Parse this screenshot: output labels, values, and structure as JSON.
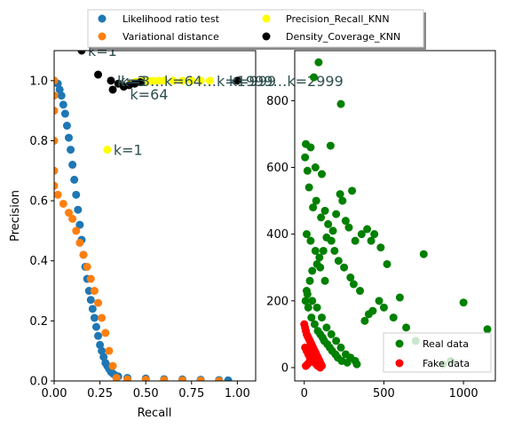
{
  "chart_data": [
    {
      "type": "scatter",
      "xlabel": "Recall",
      "ylabel": "Precision",
      "xlim": [
        0.0,
        1.1
      ],
      "ylim": [
        0.0,
        1.1
      ],
      "xticks": [
        "0.00",
        "0.25",
        "0.50",
        "0.75",
        "1.00"
      ],
      "yticks": [
        "0.0",
        "0.2",
        "0.4",
        "0.6",
        "0.8",
        "1.0"
      ],
      "grid": false,
      "legend_position": "top-center outside",
      "series": [
        {
          "name": "Likelihood ratio test",
          "color": "#1f77b4",
          "x": [
            0.0,
            0.02,
            0.03,
            0.04,
            0.05,
            0.06,
            0.07,
            0.08,
            0.09,
            0.1,
            0.11,
            0.12,
            0.13,
            0.14,
            0.15,
            0.16,
            0.17,
            0.18,
            0.19,
            0.2,
            0.21,
            0.22,
            0.23,
            0.24,
            0.25,
            0.26,
            0.27,
            0.28,
            0.29,
            0.3,
            0.31,
            0.32,
            0.33,
            0.35,
            0.4,
            0.5,
            0.6,
            0.7,
            0.8,
            0.9,
            0.95
          ],
          "y": [
            1.0,
            0.99,
            0.97,
            0.95,
            0.92,
            0.89,
            0.85,
            0.81,
            0.77,
            0.72,
            0.67,
            0.62,
            0.57,
            0.52,
            0.47,
            0.42,
            0.38,
            0.34,
            0.3,
            0.27,
            0.24,
            0.21,
            0.18,
            0.15,
            0.12,
            0.1,
            0.08,
            0.06,
            0.05,
            0.04,
            0.03,
            0.025,
            0.02,
            0.015,
            0.01,
            0.008,
            0.006,
            0.005,
            0.004,
            0.003,
            0.002
          ]
        },
        {
          "name": "Variational distance",
          "color": "#ff7f0e",
          "x": [
            0.0,
            0.0,
            0.0,
            0.0,
            0.0,
            0.0,
            0.02,
            0.05,
            0.08,
            0.1,
            0.12,
            0.14,
            0.16,
            0.18,
            0.2,
            0.22,
            0.24,
            0.26,
            0.28,
            0.3,
            0.32,
            0.34,
            0.4,
            0.5,
            0.6,
            0.7,
            0.8,
            0.9
          ],
          "y": [
            1.0,
            0.95,
            0.9,
            0.8,
            0.7,
            0.65,
            0.62,
            0.59,
            0.56,
            0.54,
            0.5,
            0.46,
            0.42,
            0.38,
            0.34,
            0.3,
            0.26,
            0.21,
            0.16,
            0.1,
            0.05,
            0.01,
            0.005,
            0.004,
            0.003,
            0.002,
            0.001,
            0.0
          ]
        },
        {
          "name": "Precision_Recall_KNN",
          "color": "#ffff00",
          "x": [
            0.29,
            0.42,
            0.44,
            0.46,
            0.48,
            0.5,
            0.52,
            0.54,
            0.57,
            0.6,
            0.65,
            0.7,
            0.75,
            0.8,
            0.85
          ],
          "y": [
            0.77,
            0.99,
            0.995,
            0.997,
            0.998,
            0.998,
            0.999,
            0.999,
            1.0,
            1.0,
            1.0,
            1.0,
            1.0,
            1.0,
            1.0
          ],
          "labels": [
            "k=1"
          ]
        },
        {
          "name": "Density_Coverage_KNN",
          "color": "#000000",
          "x": [
            0.15,
            0.24,
            0.31,
            0.32,
            0.35,
            0.38,
            0.41,
            0.44,
            0.47,
            1.0
          ],
          "y": [
            1.1,
            1.02,
            1.0,
            0.97,
            0.99,
            0.98,
            0.985,
            0.99,
            0.995,
            1.0
          ],
          "labels": [
            "k=1"
          ]
        }
      ],
      "annotations": [
        {
          "text": "k=1",
          "x": 0.29,
          "y": 0.77
        },
        {
          "text": "k=1",
          "x": 0.15,
          "y": 1.1
        },
        {
          "text": "k=3",
          "x": 0.31,
          "y": 1.0
        },
        {
          "text": "k=64",
          "x": 0.38,
          "y": 0.955
        },
        {
          "text": "k=999",
          "x": 0.92,
          "y": 1.0
        }
      ],
      "overlap_text": "k=3…k=64…k=1999…k=2999"
    },
    {
      "type": "scatter",
      "xlim": [
        -60,
        1200
      ],
      "ylim": [
        -40,
        950
      ],
      "xticks": [
        "0",
        "500",
        "1000"
      ],
      "yticks": [
        "0",
        "200",
        "400",
        "600",
        "800"
      ],
      "grid": false,
      "legend_position": "lower-right",
      "series": [
        {
          "name": "Real data",
          "color": "#008000",
          "x": [
            90,
            60,
            230,
            40,
            5,
            10,
            165,
            70,
            110,
            225,
            300,
            20,
            30,
            55,
            75,
            105,
            130,
            150,
            180,
            200,
            240,
            260,
            280,
            320,
            360,
            395,
            420,
            440,
            480,
            520,
            600,
            750,
            1000,
            1150,
            920,
            870,
            700,
            640,
            560,
            500,
            470,
            430,
            405,
            380,
            350,
            310,
            290,
            250,
            215,
            190,
            170,
            140,
            120,
            95,
            80,
            50,
            35,
            15,
            8,
            25,
            45,
            65,
            85,
            100,
            115,
            125,
            145,
            160,
            175,
            195,
            210,
            235,
            270,
            330,
            15,
            40,
            70,
            100,
            130,
            20,
            50,
            80,
            110,
            140,
            170,
            200,
            230,
            260,
            290,
            320
          ],
          "y": [
            915,
            870,
            790,
            660,
            630,
            670,
            665,
            600,
            580,
            520,
            530,
            590,
            540,
            480,
            500,
            450,
            470,
            430,
            410,
            460,
            500,
            440,
            420,
            380,
            400,
            415,
            380,
            400,
            360,
            310,
            210,
            340,
            195,
            115,
            20,
            10,
            80,
            120,
            150,
            180,
            200,
            170,
            160,
            140,
            230,
            250,
            270,
            300,
            320,
            350,
            380,
            390,
            350,
            330,
            310,
            290,
            260,
            230,
            200,
            180,
            150,
            130,
            110,
            100,
            90,
            80,
            70,
            60,
            50,
            40,
            30,
            20,
            15,
            10,
            400,
            380,
            350,
            300,
            260,
            220,
            200,
            180,
            150,
            120,
            100,
            80,
            60,
            40,
            30,
            20
          ]
        },
        {
          "name": "Fake data",
          "color": "#ff0000",
          "x": [
            0,
            5,
            10,
            15,
            20,
            25,
            30,
            35,
            40,
            45,
            50,
            55,
            60,
            65,
            70,
            75,
            80,
            85,
            90,
            95,
            100,
            105,
            110,
            5,
            15,
            25,
            35,
            45,
            55,
            65,
            75,
            85,
            10,
            20,
            30,
            40,
            50,
            60,
            70,
            80,
            90,
            100
          ],
          "y": [
            130,
            120,
            110,
            100,
            95,
            90,
            85,
            80,
            75,
            70,
            65,
            60,
            55,
            50,
            45,
            40,
            35,
            30,
            25,
            20,
            15,
            10,
            5,
            60,
            50,
            40,
            30,
            25,
            20,
            15,
            10,
            5,
            5,
            10,
            15,
            20,
            25,
            20,
            15,
            10,
            5,
            0
          ]
        }
      ]
    }
  ]
}
